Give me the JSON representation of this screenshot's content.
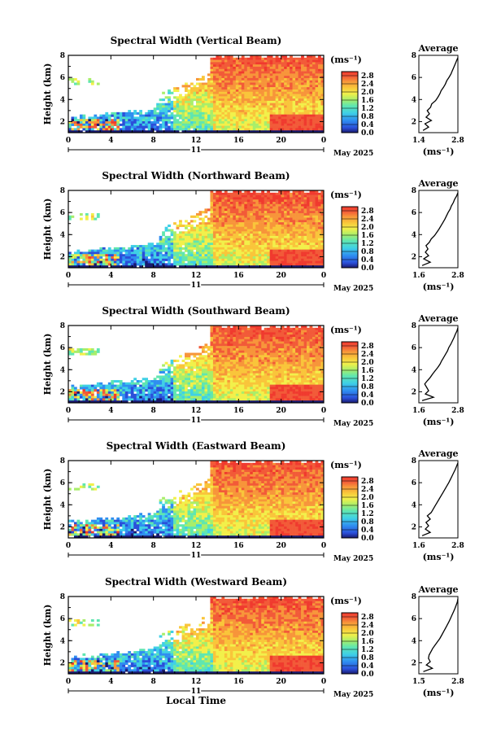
{
  "chart_data": [
    {
      "type": "heatmap",
      "title": "Spectral Width (Vertical Beam)",
      "ylabel": "Height (km)",
      "yticks": [
        "2",
        "4",
        "6",
        "8"
      ],
      "ylim": [
        1,
        8
      ],
      "xticks": [
        "0",
        "4",
        "8",
        "12",
        "16",
        "20",
        "0"
      ],
      "xlim": [
        0,
        24
      ],
      "date_day": "11",
      "date_month": "May 2025",
      "xlabel": "",
      "colorbar": {
        "unit": "(ms⁻¹)",
        "ticks": [
          "0.0",
          "0.4",
          "0.8",
          "1.2",
          "1.6",
          "2.0",
          "2.4",
          "2.8"
        ],
        "range": [
          0,
          3.0
        ]
      },
      "average": {
        "title": "Average",
        "xlabel": "(ms⁻¹)",
        "xticks": [
          "1.4",
          "2.8"
        ],
        "xlim": [
          1.4,
          2.8
        ],
        "yticks": [
          "2",
          "4",
          "6",
          "8"
        ],
        "height": [
          1.2,
          1.5,
          1.8,
          2.1,
          2.4,
          2.7,
          3.0,
          3.3,
          3.6,
          3.9,
          4.2,
          4.5,
          4.8,
          5.1,
          5.4,
          5.7,
          6.0,
          6.3,
          6.6,
          6.9,
          7.2,
          7.5,
          7.8
        ],
        "value": [
          1.55,
          1.75,
          1.62,
          1.85,
          1.66,
          1.78,
          1.7,
          1.82,
          1.86,
          2.0,
          2.08,
          2.15,
          2.2,
          2.28,
          2.35,
          2.4,
          2.48,
          2.55,
          2.6,
          2.65,
          2.7,
          2.75,
          2.8
        ]
      }
    },
    {
      "type": "heatmap",
      "title": "Spectral Width (Northward Beam)",
      "ylabel": "Height (km)",
      "yticks": [
        "2",
        "4",
        "6",
        "8"
      ],
      "ylim": [
        1,
        8
      ],
      "xticks": [
        "0",
        "4",
        "8",
        "12",
        "16",
        "20",
        "0"
      ],
      "xlim": [
        0,
        24
      ],
      "date_day": "11",
      "date_month": "May 2025",
      "xlabel": "",
      "colorbar": {
        "unit": "(ms⁻¹)",
        "ticks": [
          "0.0",
          "0.4",
          "0.8",
          "1.2",
          "1.6",
          "2.0",
          "2.4",
          "2.8"
        ],
        "range": [
          0,
          3.0
        ]
      },
      "average": {
        "title": "Average",
        "xlabel": "(ms⁻¹)",
        "xticks": [
          "1.6",
          "2.8"
        ],
        "xlim": [
          1.6,
          2.8
        ],
        "yticks": [
          "2",
          "4",
          "6",
          "8"
        ],
        "height": [
          1.2,
          1.5,
          1.8,
          2.1,
          2.4,
          2.7,
          3.0,
          3.3,
          3.6,
          3.9,
          4.2,
          4.5,
          4.8,
          5.1,
          5.4,
          5.7,
          6.0,
          6.3,
          6.6,
          6.9,
          7.2,
          7.5,
          7.8
        ],
        "value": [
          1.7,
          1.95,
          1.75,
          1.9,
          1.8,
          1.88,
          1.82,
          1.92,
          1.98,
          2.08,
          2.15,
          2.22,
          2.28,
          2.34,
          2.4,
          2.45,
          2.5,
          2.56,
          2.6,
          2.66,
          2.7,
          2.76,
          2.8
        ]
      }
    },
    {
      "type": "heatmap",
      "title": "Spectral Width (Southward Beam)",
      "ylabel": "Height (km)",
      "yticks": [
        "2",
        "4",
        "6",
        "8"
      ],
      "ylim": [
        1,
        8
      ],
      "xticks": [
        "0",
        "4",
        "8",
        "12",
        "16",
        "20",
        "0"
      ],
      "xlim": [
        0,
        24
      ],
      "date_day": "11",
      "date_month": "May 2025",
      "xlabel": "",
      "colorbar": {
        "unit": "(ms⁻¹)",
        "ticks": [
          "0.0",
          "0.4",
          "0.8",
          "1.2",
          "1.6",
          "2.0",
          "2.4",
          "2.8"
        ],
        "range": [
          0,
          3.0
        ]
      },
      "average": {
        "title": "Average",
        "xlabel": "(ms⁻¹)",
        "xticks": [
          "1.6",
          "2.8"
        ],
        "xlim": [
          1.6,
          2.8
        ],
        "yticks": [
          "2",
          "4",
          "6",
          "8"
        ],
        "height": [
          1.2,
          1.5,
          1.8,
          2.1,
          2.4,
          2.7,
          3.0,
          3.3,
          3.6,
          3.9,
          4.2,
          4.5,
          4.8,
          5.1,
          5.4,
          5.7,
          6.0,
          6.3,
          6.6,
          6.9,
          7.2,
          7.5,
          7.8
        ],
        "value": [
          1.7,
          2.05,
          1.8,
          1.9,
          1.84,
          1.78,
          1.86,
          1.95,
          2.02,
          2.1,
          2.18,
          2.25,
          2.3,
          2.36,
          2.42,
          2.48,
          2.52,
          2.58,
          2.63,
          2.68,
          2.72,
          2.77,
          2.8
        ]
      }
    },
    {
      "type": "heatmap",
      "title": "Spectral Width (Eastward Beam)",
      "ylabel": "Height (km)",
      "yticks": [
        "2",
        "4",
        "6",
        "8"
      ],
      "ylim": [
        1,
        8
      ],
      "xticks": [
        "0",
        "4",
        "8",
        "12",
        "16",
        "20",
        "0"
      ],
      "xlim": [
        0,
        24
      ],
      "date_day": "11",
      "date_month": "May 2025",
      "xlabel": "",
      "colorbar": {
        "unit": "(ms⁻¹)",
        "ticks": [
          "0.0",
          "0.4",
          "0.8",
          "1.2",
          "1.6",
          "2.0",
          "2.4",
          "2.8"
        ],
        "range": [
          0,
          3.0
        ]
      },
      "average": {
        "title": "Average",
        "xlabel": "(ms⁻¹)",
        "xticks": [
          "1.6",
          "2.8"
        ],
        "xlim": [
          1.6,
          2.8
        ],
        "yticks": [
          "2",
          "4",
          "6",
          "8"
        ],
        "height": [
          1.2,
          1.5,
          1.8,
          2.1,
          2.4,
          2.7,
          3.0,
          3.3,
          3.6,
          3.9,
          4.2,
          4.5,
          4.8,
          5.1,
          5.4,
          5.7,
          6.0,
          6.3,
          6.6,
          6.9,
          7.2,
          7.5,
          7.8
        ],
        "value": [
          1.7,
          1.95,
          1.8,
          1.9,
          1.82,
          1.95,
          1.86,
          1.98,
          2.04,
          2.1,
          2.16,
          2.22,
          2.28,
          2.34,
          2.4,
          2.46,
          2.52,
          2.57,
          2.62,
          2.67,
          2.72,
          2.76,
          2.8
        ]
      }
    },
    {
      "type": "heatmap",
      "title": "Spectral Width (Westward Beam)",
      "ylabel": "Height (km)",
      "yticks": [
        "2",
        "4",
        "6",
        "8"
      ],
      "ylim": [
        1,
        8
      ],
      "xticks": [
        "0",
        "4",
        "8",
        "12",
        "16",
        "20",
        "0"
      ],
      "xlim": [
        0,
        24
      ],
      "date_day": "11",
      "date_month": "May 2025",
      "xlabel": "Local Time",
      "colorbar": {
        "unit": "(ms⁻¹)",
        "ticks": [
          "0.0",
          "0.4",
          "0.8",
          "1.2",
          "1.6",
          "2.0",
          "2.4",
          "2.8"
        ],
        "range": [
          0,
          3.0
        ]
      },
      "average": {
        "title": "Average",
        "xlabel": "(ms⁻¹)",
        "xticks": [
          "1.5",
          "2.8"
        ],
        "xlim": [
          1.5,
          2.8
        ],
        "yticks": [
          "2",
          "4",
          "6",
          "8"
        ],
        "height": [
          1.2,
          1.5,
          1.8,
          2.1,
          2.4,
          2.7,
          3.0,
          3.3,
          3.6,
          3.9,
          4.2,
          4.5,
          4.8,
          5.1,
          5.4,
          5.7,
          6.0,
          6.3,
          6.6,
          6.9,
          7.2,
          7.5,
          7.8
        ],
        "value": [
          1.65,
          1.95,
          1.75,
          1.88,
          1.82,
          1.84,
          1.9,
          1.96,
          2.04,
          2.12,
          2.2,
          2.26,
          2.32,
          2.38,
          2.44,
          2.5,
          2.55,
          2.6,
          2.65,
          2.7,
          2.74,
          2.78,
          2.8
        ]
      }
    }
  ],
  "colormap": [
    "#1a1a6e",
    "#2b4fd9",
    "#2f8ef0",
    "#3fd0e6",
    "#5fe6b0",
    "#a8ee6a",
    "#f2f04a",
    "#f9c53a",
    "#f7953a",
    "#f25a38",
    "#f03a2e"
  ]
}
